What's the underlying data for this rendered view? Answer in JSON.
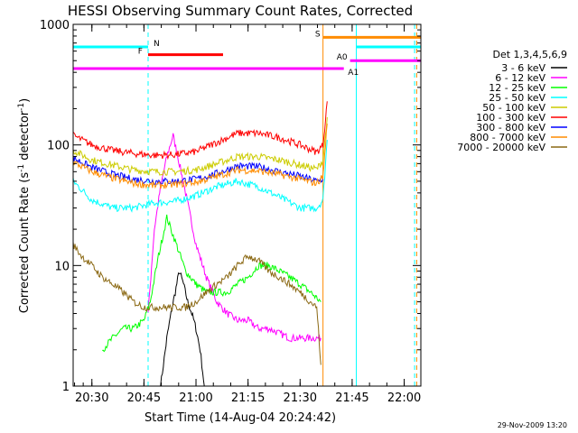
{
  "chart_data": {
    "type": "line",
    "title": "HESSI Observing Summary Count Rates, Corrected",
    "xlabel": "Start Time (14-Aug-04 20:24:42)",
    "ylabel_main": "Corrected Count Rate (s",
    "ylabel_sup1": "-1",
    "ylabel_mid": " detector",
    "ylabel_sup2": "-1",
    "ylabel_end": ")",
    "ylabel": "Corrected Count Rate (s-1 detector-1)",
    "yscale": "log",
    "ylim": [
      1,
      1000
    ],
    "xlim": [
      20.41,
      22.08
    ],
    "xticks": [
      20.5,
      20.75,
      21.0,
      21.25,
      21.5,
      21.75,
      22.0
    ],
    "xtick_labels": [
      "20:30",
      "20:45",
      "21:00",
      "21:15",
      "21:30",
      "21:45",
      "22:00"
    ],
    "yticks": [
      1,
      10,
      100,
      1000
    ],
    "ytick_labels": [
      "1",
      "10",
      "100",
      "1000"
    ],
    "timestamp": "29-Nov-2009 13:20",
    "legend": {
      "position": "right",
      "title": "Det 1,3,4,5,6,9",
      "entries": [
        {
          "label": "3 - 6 keV",
          "color": "#000000"
        },
        {
          "label": "6 - 12 keV",
          "color": "#ff00ff"
        },
        {
          "label": "12 - 25 keV",
          "color": "#00ff00"
        },
        {
          "label": "25 - 50 keV",
          "color": "#00ffff"
        },
        {
          "label": "50 - 100 keV",
          "color": "#cccc00"
        },
        {
          "label": "100 - 300 keV",
          "color": "#ff0000"
        },
        {
          "label": "300 - 800 keV",
          "color": "#0000ff"
        },
        {
          "label": "800 - 7000 keV",
          "color": "#ff8c00"
        },
        {
          "label": "7000 - 20000 keV",
          "color": "#8b6914"
        }
      ]
    },
    "flags": [
      {
        "label": "N",
        "color": "#00ffff",
        "y": 650,
        "segments": [
          [
            20.41,
            20.77
          ],
          [
            21.77,
            22.08
          ]
        ]
      },
      {
        "label": "F",
        "color": "#ff0000",
        "y": 560,
        "segments": [
          [
            20.77,
            21.13
          ]
        ]
      },
      {
        "label": "",
        "color": "#ff00ff",
        "y": 430,
        "segments": [
          [
            20.41,
            21.71
          ]
        ]
      },
      {
        "label": "S",
        "color": "#ff8c00",
        "y": 780,
        "segments": [
          [
            21.61,
            22.08
          ]
        ]
      },
      {
        "label": "A0",
        "color": "#ff00ff",
        "y": 500,
        "segments": [
          [
            21.74,
            22.08
          ]
        ]
      },
      {
        "label": "A1",
        "color": "",
        "y": 430,
        "segments": []
      }
    ],
    "vlines": [
      {
        "x": 20.77,
        "color": "#00ffff",
        "dashed": true
      },
      {
        "x": 21.61,
        "color": "#ff8c00",
        "dashed": false
      },
      {
        "x": 21.77,
        "color": "#00ffff",
        "dashed": false
      },
      {
        "x": 22.05,
        "color": "#00ffff",
        "dashed": true
      },
      {
        "x": 22.06,
        "color": "#ff8c00",
        "dashed": true
      }
    ],
    "series": [
      {
        "name": "3 - 6 keV",
        "color": "#000000",
        "x": [
          20.83,
          20.86,
          20.88,
          20.9,
          20.92,
          20.94,
          20.96,
          20.98,
          21.0,
          21.02,
          21.04
        ],
        "y": [
          1,
          2.5,
          4,
          6,
          9,
          7,
          5,
          4,
          3,
          2,
          1
        ]
      },
      {
        "name": "6 - 12 keV",
        "color": "#ff00ff",
        "x": [
          20.77,
          20.8,
          20.83,
          20.86,
          20.89,
          20.92,
          20.95,
          21.0,
          21.05,
          21.1,
          21.15,
          21.2,
          21.25,
          21.3,
          21.35,
          21.45,
          21.55,
          21.6
        ],
        "y": [
          4,
          20,
          45,
          80,
          120,
          70,
          40,
          15,
          8,
          5,
          4,
          3.5,
          3.5,
          3,
          3,
          2.5,
          2.5,
          2.5
        ]
      },
      {
        "name": "12 - 25 keV",
        "color": "#00ff00",
        "x": [
          20.55,
          20.6,
          20.65,
          20.7,
          20.75,
          20.78,
          20.82,
          20.86,
          20.9,
          20.95,
          21.0,
          21.05,
          21.1,
          21.15,
          21.2,
          21.25,
          21.3,
          21.35,
          21.4,
          21.45,
          21.5,
          21.55,
          21.6
        ],
        "y": [
          2,
          2.5,
          3,
          3,
          3.5,
          5,
          12,
          25,
          16,
          9,
          7,
          6,
          6,
          6,
          7,
          8,
          10,
          10,
          9,
          8,
          7,
          6,
          5
        ]
      },
      {
        "name": "25 - 50 keV",
        "color": "#00ffff",
        "x": [
          20.41,
          20.5,
          20.6,
          20.7,
          20.8,
          20.9,
          21.0,
          21.1,
          21.2,
          21.3,
          21.4,
          21.5,
          21.58,
          21.61,
          21.63
        ],
        "y": [
          50,
          35,
          30,
          30,
          33,
          34,
          38,
          45,
          50,
          45,
          37,
          30,
          30,
          35,
          110
        ]
      },
      {
        "name": "50 - 100 keV",
        "color": "#cccc00",
        "x": [
          20.41,
          20.5,
          20.6,
          20.7,
          20.8,
          20.9,
          21.0,
          21.1,
          21.2,
          21.3,
          21.4,
          21.5,
          21.58,
          21.61,
          21.63
        ],
        "y": [
          90,
          75,
          68,
          62,
          60,
          60,
          62,
          70,
          80,
          80,
          75,
          68,
          63,
          75,
          170
        ]
      },
      {
        "name": "100 - 300 keV",
        "color": "#ff0000",
        "x": [
          20.41,
          20.5,
          20.6,
          20.7,
          20.8,
          20.9,
          21.0,
          21.1,
          21.2,
          21.3,
          21.4,
          21.5,
          21.58,
          21.61,
          21.63
        ],
        "y": [
          120,
          100,
          90,
          85,
          82,
          83,
          88,
          105,
          125,
          125,
          115,
          100,
          87,
          100,
          230
        ]
      },
      {
        "name": "300 - 800 keV",
        "color": "#0000ff",
        "x": [
          20.41,
          20.5,
          20.6,
          20.7,
          20.8,
          20.9,
          21.0,
          21.1,
          21.2,
          21.3,
          21.4,
          21.5,
          21.58,
          21.61
        ],
        "y": [
          78,
          65,
          57,
          52,
          50,
          50,
          52,
          58,
          67,
          66,
          60,
          55,
          50,
          52
        ]
      },
      {
        "name": "800 - 7000 keV",
        "color": "#ff8c00",
        "x": [
          20.41,
          20.5,
          20.6,
          20.7,
          20.8,
          20.9,
          21.0,
          21.1,
          21.2,
          21.3,
          21.4,
          21.5,
          21.58,
          21.61,
          21.63
        ],
        "y": [
          72,
          60,
          53,
          48,
          46,
          47,
          49,
          55,
          62,
          61,
          57,
          52,
          48,
          55,
          150
        ]
      },
      {
        "name": "7000 - 20000 keV",
        "color": "#8b6914",
        "x": [
          20.41,
          20.45,
          20.5,
          20.55,
          20.6,
          20.65,
          20.7,
          20.75,
          20.8,
          20.85,
          20.9,
          20.95,
          21.0,
          21.05,
          21.1,
          21.15,
          21.2,
          21.25,
          21.3,
          21.35,
          21.4,
          21.45,
          21.5,
          21.55,
          21.58,
          21.6
        ],
        "y": [
          15,
          12,
          10,
          8,
          7,
          6,
          5,
          4.5,
          4.5,
          4.5,
          4.5,
          4.5,
          5,
          6,
          7,
          8,
          10,
          12,
          11,
          9,
          8,
          7,
          6,
          5,
          4.5,
          1.5
        ]
      }
    ]
  }
}
